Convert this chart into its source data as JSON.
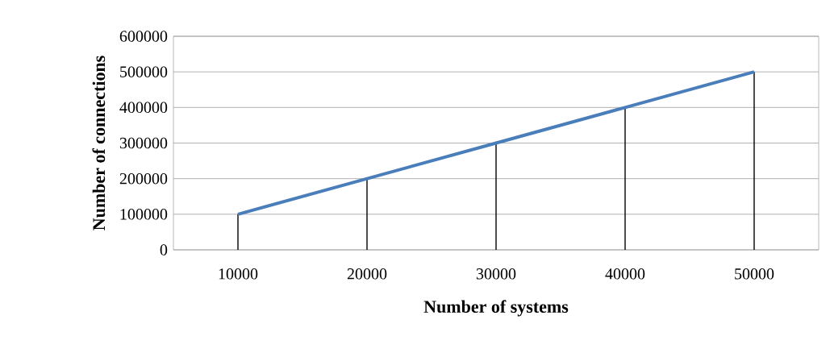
{
  "chart_data": {
    "type": "line",
    "xlabel": "Number of systems",
    "ylabel": "Number  of connections",
    "categories": [
      "10000",
      "20000",
      "30000",
      "40000",
      "50000"
    ],
    "series": [
      {
        "type": "bar",
        "color": "#000000",
        "values": [
          100000,
          200000,
          300000,
          400000,
          500000
        ]
      },
      {
        "color": "#4a7ebb",
        "values": [
          100000,
          200000,
          300000,
          400000,
          500000
        ]
      }
    ],
    "ylim": [
      0,
      600000
    ],
    "yticks": [
      0,
      100000,
      200000,
      300000,
      400000,
      500000,
      600000
    ],
    "grid": "y",
    "marker": "none",
    "line_style": "solid"
  }
}
